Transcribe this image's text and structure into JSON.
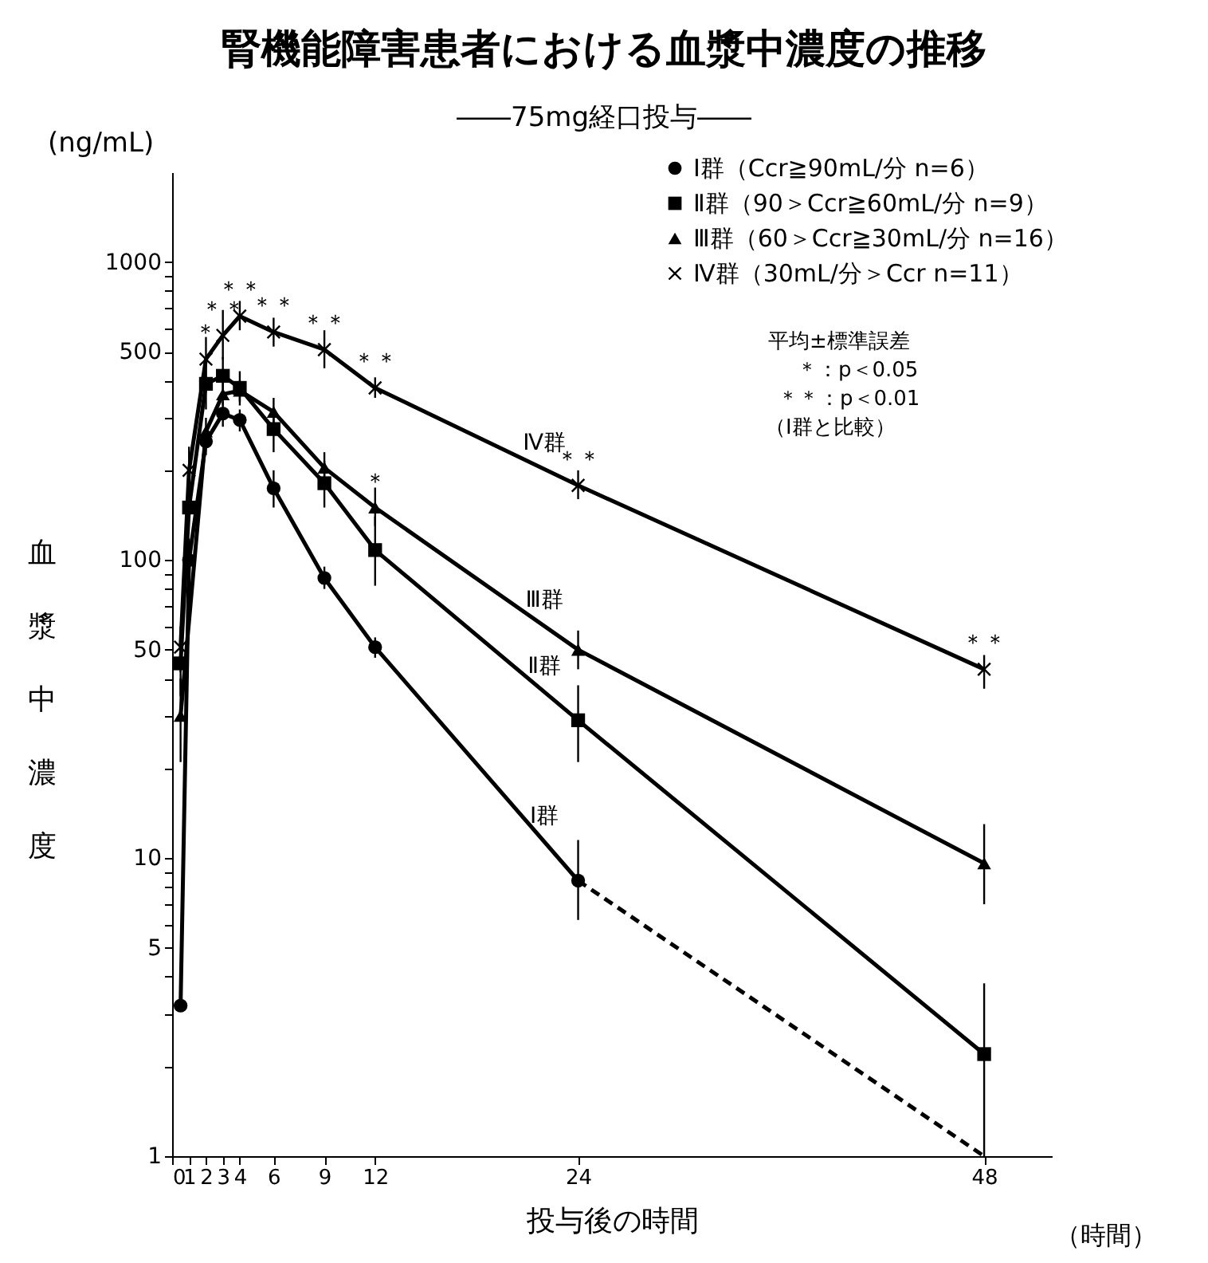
{
  "chart_data": {
    "type": "line",
    "title": "腎機能障害患者における血漿中濃度の推移",
    "subtitle": "――75mg経口投与――",
    "xlabel": "投与後の時間",
    "ylabel": "血漿中濃度",
    "xlim": [
      0,
      52
    ],
    "xticks": [
      0,
      1,
      2,
      3,
      4,
      6,
      9,
      12,
      24,
      48
    ],
    "ylim": [
      1,
      2000
    ],
    "log": true,
    "yticks": [
      1,
      {
        "value": 2,
        "label": null
      },
      {
        "value": 3,
        "label": null
      },
      {
        "value": 4,
        "label": null
      },
      5,
      {
        "value": 6,
        "label": null
      },
      {
        "value": 7,
        "label": null
      },
      {
        "value": 8,
        "label": null
      },
      {
        "value": 9,
        "label": null
      },
      10,
      {
        "value": 20,
        "label": null
      },
      {
        "value": 30,
        "label": null
      },
      {
        "value": 40,
        "label": null
      },
      50,
      {
        "value": 60,
        "label": null
      },
      {
        "value": 70,
        "label": null
      },
      {
        "value": 80,
        "label": null
      },
      {
        "value": 90,
        "label": null
      },
      100,
      {
        "value": 200,
        "label": null
      },
      {
        "value": 300,
        "label": null
      },
      {
        "value": 400,
        "label": null
      },
      500,
      {
        "value": 600,
        "label": null
      },
      {
        "value": 700,
        "label": null
      },
      {
        "value": 800,
        "label": null
      },
      {
        "value": 900,
        "label": null
      },
      1000
    ],
    "grid": false,
    "legend": "top right",
    "line_style": "solid",
    "series": [
      {
        "name": "Ⅰ群（Ccr≧90mL/分 n=6）",
        "color": "#000000",
        "marker": "circle",
        "x": [
          0.5,
          1,
          2,
          3,
          4,
          6,
          9,
          12,
          24
        ],
        "values": [
          3.2,
          100,
          250,
          310,
          295,
          174,
          87,
          51,
          8.4
        ],
        "errors": [
          null,
          [
            85,
            118
          ],
          [
            225,
            280
          ],
          [
            280,
            340
          ],
          [
            270,
            320
          ],
          [
            150,
            200
          ],
          [
            80,
            95
          ],
          [
            47,
            55
          ],
          [
            6.2,
            11.5
          ]
        ]
      },
      {
        "name": "Ⅱ群（90＞Ccr≧60mL/分 n=9）",
        "color": "#000000",
        "marker": "square",
        "x": [
          0.5,
          1,
          2,
          3,
          4,
          6,
          9,
          12,
          24,
          48
        ],
        "values": [
          45,
          150,
          390,
          415,
          378,
          275,
          181,
          108,
          29,
          2.2
        ],
        "errors": [
          [
            35,
            56
          ],
          null,
          [
            320,
            470
          ],
          [
            360,
            480
          ],
          [
            330,
            430
          ],
          [
            230,
            320
          ],
          [
            150,
            215
          ],
          [
            82,
            140
          ],
          [
            21,
            38
          ],
          [
            1,
            3.8
          ]
        ]
      },
      {
        "name": "Ⅲ群（60＞Ccr≧30mL/分 n=16）",
        "color": "#000000",
        "marker": "triangle",
        "x": [
          0.5,
          2,
          3,
          4,
          6,
          9,
          12,
          24,
          48
        ],
        "values": [
          30,
          270,
          360,
          370,
          314,
          204,
          150,
          50,
          9.6
        ],
        "errors": [
          [
            21,
            40
          ],
          [
            240,
            300
          ],
          [
            330,
            400
          ],
          [
            340,
            400
          ],
          [
            280,
            350
          ],
          [
            185,
            230
          ],
          [
            130,
            175
          ],
          [
            43,
            58
          ],
          [
            7,
            13
          ]
        ]
      },
      {
        "name": "Ⅳ群（30mL/分＞Ccr n=11）",
        "color": "#000000",
        "marker": "cross",
        "x": [
          0.5,
          1,
          2,
          3,
          4,
          6,
          9,
          12,
          24,
          48
        ],
        "values": [
          51,
          200,
          472,
          567,
          658,
          582,
          508,
          378,
          178,
          43
        ],
        "errors": [
          [
            42,
            60
          ],
          [
            160,
            240
          ],
          [
            400,
            560
          ],
          [
            470,
            690
          ],
          [
            590,
            740
          ],
          [
            520,
            650
          ],
          [
            440,
            590
          ],
          [
            350,
            410
          ],
          [
            160,
            200
          ],
          [
            37,
            48
          ]
        ]
      },
      {
        "type": "line",
        "color": "#000000",
        "marker": "none",
        "line_style": "dashed",
        "x": [
          24,
          48
        ],
        "values": [
          8.4,
          1
        ]
      }
    ],
    "annotations": [
      "(ng/mL)",
      "（時間）",
      "平均±標準誤差",
      "＊：p＜0.05",
      "＊＊：p＜0.01",
      "（Ⅰ群と比較）",
      {
        "text": "Ⅳ群",
        "x": 22,
        "y": 202
      },
      {
        "text": "Ⅲ群",
        "x": 22,
        "y": 60
      },
      {
        "text": "Ⅱ群",
        "x": 22,
        "y": 36.1
      },
      {
        "text": "Ⅰ群",
        "x": 22,
        "y": 11.3
      },
      {
        "text": "＊",
        "x": 2,
        "y": 472
      },
      {
        "text": "＊＊",
        "x": 3,
        "y": 567
      },
      {
        "text": "＊＊",
        "x": 4,
        "y": 658
      },
      {
        "text": "＊＊",
        "x": 6,
        "y": 582
      },
      {
        "text": "＊＊",
        "x": 9,
        "y": 508
      },
      {
        "text": "＊＊",
        "x": 12,
        "y": 378
      },
      {
        "text": "＊",
        "x": 12,
        "y": 150
      },
      {
        "text": "＊＊",
        "x": 24,
        "y": 178
      },
      {
        "text": "＊＊",
        "x": 48,
        "y": 43
      }
    ]
  }
}
